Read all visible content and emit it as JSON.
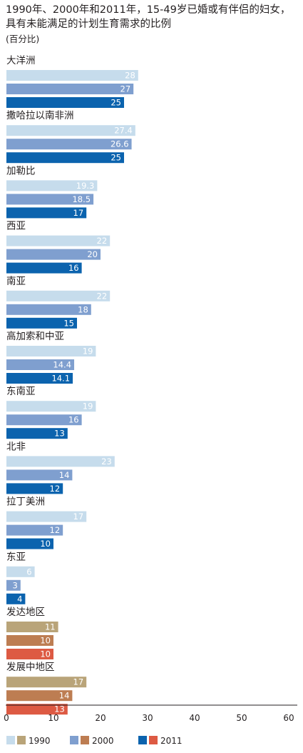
{
  "title": "1990年、2000年和2011年，15-49岁已婚或有伴侣的妇女，具有未能满足的计划生育需求的比例",
  "unit": "(百分比)",
  "colors": {
    "blue_1990": "#c6dcec",
    "blue_2000": "#7f9fcf",
    "blue_2011": "#0b63ae",
    "warm_1990": "#b9a479",
    "warm_2000": "#bd7d52",
    "warm_2011": "#dd5a43",
    "axis": "#231f20"
  },
  "chart_data": {
    "type": "bar",
    "orientation": "horizontal",
    "xlim": [
      0,
      60
    ],
    "xticks": [
      "0",
      "10",
      "20",
      "30",
      "40",
      "50",
      "60"
    ],
    "series_names": [
      "1990",
      "2000",
      "2011"
    ],
    "categories": [
      {
        "name": "大洋洲",
        "values": [
          28,
          27,
          25
        ],
        "labels": [
          "28",
          "27",
          "25"
        ],
        "group": "blue"
      },
      {
        "name": "撒哈拉以南非洲",
        "values": [
          27.4,
          26.6,
          25
        ],
        "labels": [
          "27.4",
          "26.6",
          "25"
        ],
        "group": "blue"
      },
      {
        "name": "加勒比",
        "values": [
          19.3,
          18.5,
          17
        ],
        "labels": [
          "19.3",
          "18.5",
          "17"
        ],
        "group": "blue"
      },
      {
        "name": "西亚",
        "values": [
          22,
          20,
          16
        ],
        "labels": [
          "22",
          "20",
          "16"
        ],
        "group": "blue"
      },
      {
        "name": "南亚",
        "values": [
          22,
          18,
          15
        ],
        "labels": [
          "22",
          "18",
          "15"
        ],
        "group": "blue"
      },
      {
        "name": "高加索和中亚",
        "values": [
          19,
          14.4,
          14.1
        ],
        "labels": [
          "19",
          "14.4",
          "14.1"
        ],
        "group": "blue"
      },
      {
        "name": "东南亚",
        "values": [
          19,
          16,
          13
        ],
        "labels": [
          "19",
          "16",
          "13"
        ],
        "group": "blue"
      },
      {
        "name": "北非",
        "values": [
          23,
          14,
          12
        ],
        "labels": [
          "23",
          "14",
          "12"
        ],
        "group": "blue"
      },
      {
        "name": "拉丁美洲",
        "values": [
          17,
          12,
          10
        ],
        "labels": [
          "17",
          "12",
          "10"
        ],
        "group": "blue"
      },
      {
        "name": "东亚",
        "values": [
          6,
          3,
          4
        ],
        "labels": [
          "6",
          "3",
          "4"
        ],
        "group": "blue"
      },
      {
        "name": "发达地区",
        "values": [
          11,
          10,
          10
        ],
        "labels": [
          "11",
          "10",
          "10"
        ],
        "group": "warm"
      },
      {
        "name": "发展中地区",
        "values": [
          17,
          14,
          13
        ],
        "labels": [
          "17",
          "14",
          "13"
        ],
        "group": "warm"
      }
    ],
    "legend": [
      {
        "label": "1990",
        "colors": [
          "blue_1990",
          "warm_1990"
        ]
      },
      {
        "label": "2000",
        "colors": [
          "blue_2000",
          "warm_2000"
        ]
      },
      {
        "label": "2011",
        "colors": [
          "blue_2011",
          "warm_2011"
        ]
      }
    ]
  }
}
